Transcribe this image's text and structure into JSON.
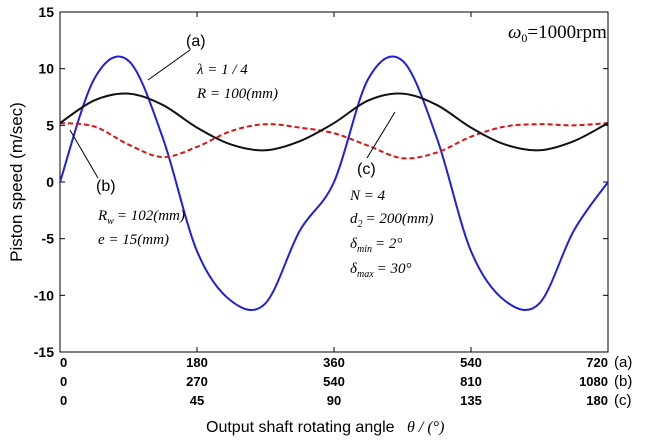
{
  "chart_data": {
    "type": "line",
    "title": "",
    "ylabel": "Piston speed  (m/sec)",
    "xlabel": "Output shaft rotating angle",
    "xlabel_symbol": "θ / (°)",
    "ylim": [
      -15,
      15
    ],
    "yticks": [
      "15",
      "10",
      "5",
      "0",
      "-5",
      "-10",
      "-15"
    ],
    "grid": false,
    "x_axes": [
      {
        "ticks": [
          "0",
          "180",
          "360",
          "540",
          "720"
        ],
        "tag": "(a)"
      },
      {
        "ticks": [
          "0",
          "270",
          "540",
          "810",
          "1080"
        ],
        "tag": "(b)"
      },
      {
        "ticks": [
          "0",
          "45",
          "90",
          "135",
          "180"
        ],
        "tag": "(c)"
      }
    ],
    "x": [
      0,
      45,
      90,
      135,
      180,
      225,
      270,
      315,
      360,
      405,
      450,
      495,
      540,
      585,
      630,
      675,
      720
    ],
    "series": [
      {
        "name": "(a)",
        "color": "#1f1fe0",
        "style": "solid",
        "values": [
          0,
          9.1,
          10.7,
          3.9,
          -6.1,
          -10.5,
          -10.7,
          -4.3,
          0,
          9.1,
          10.7,
          3.9,
          -6.1,
          -10.5,
          -10.7,
          -4.3,
          0
        ]
      },
      {
        "name": "(b)",
        "color": "#e01010",
        "style": "dashed",
        "values": [
          5.2,
          4.9,
          3.3,
          2.2,
          3.1,
          4.5,
          5.1,
          4.8,
          4.3,
          3.2,
          2.1,
          2.6,
          4.0,
          4.9,
          5.1,
          5.0,
          5.2
        ]
      },
      {
        "name": "(c)",
        "color": "#111111",
        "style": "solid",
        "values": [
          5.2,
          7.2,
          7.8,
          6.8,
          4.8,
          3.3,
          2.8,
          3.6,
          5.2,
          7.2,
          7.8,
          6.8,
          4.8,
          3.3,
          2.8,
          3.6,
          5.2
        ]
      }
    ],
    "annotations": {
      "omega": "=1000rpm",
      "a_tag": "(a)",
      "b_tag": "(b)",
      "c_tag": "(c)",
      "a_params": [
        "λ = 1 / 4",
        "R = 100(mm)"
      ],
      "b_params": [
        "= 102(mm)",
        "e = 15(mm)"
      ],
      "c_params": [
        "N = 4",
        "= 200(mm)",
        "= 2°",
        "= 30°"
      ]
    }
  }
}
